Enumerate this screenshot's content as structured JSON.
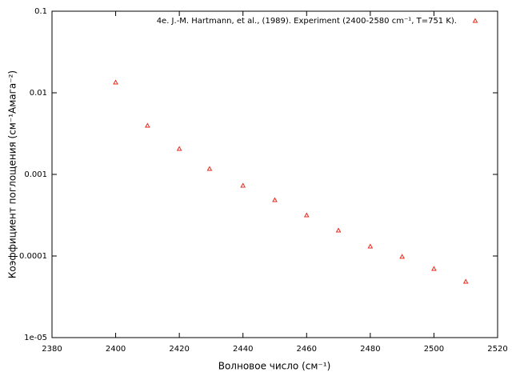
{
  "chart_data": {
    "type": "scatter",
    "log_y": true,
    "x_label": "Волновое число (см⁻¹)",
    "y_label": "Коэффициент поглощения (см⁻¹Амага⁻²)",
    "xlim": [
      2380,
      2520
    ],
    "xticks": [
      2380,
      2400,
      2420,
      2440,
      2460,
      2480,
      2500,
      2520
    ],
    "ylim": [
      1e-05,
      0.1
    ],
    "yticks": [
      {
        "value": 1e-05,
        "label": "1e-05"
      },
      0.0001,
      0.001,
      0.01,
      0.1
    ],
    "legend": "upper right",
    "series": [
      {
        "name": "4e. J.-M. Hartmann, et al., (1989). Experiment (2400-2580 cm⁻¹, T=751 K).",
        "color": "#e8291c",
        "x": [
          2400,
          2410,
          2420,
          2429.5,
          2440,
          2450,
          2460,
          2470,
          2480,
          2490,
          2500,
          2510
        ],
        "values": [
          0.0134,
          0.00396,
          0.00206,
          0.00117,
          0.00073,
          0.000485,
          0.000316,
          0.000206,
          0.000131,
          9.8e-05,
          6.97e-05,
          4.85e-05
        ]
      }
    ]
  }
}
